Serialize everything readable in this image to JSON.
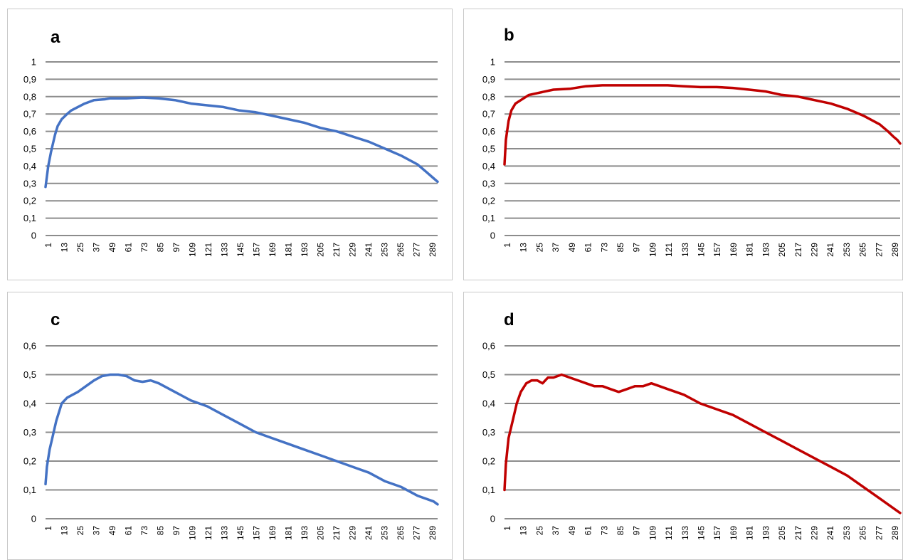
{
  "colors": {
    "blue": "#4472c4",
    "red": "#c00000",
    "grid": "#8c8c8c"
  },
  "chart_data": [
    {
      "panel": "a",
      "type": "line",
      "color": "#4472c4",
      "ylim": [
        0,
        1
      ],
      "yticks": [
        "0",
        "0,1",
        "0,2",
        "0,3",
        "0,4",
        "0,5",
        "0,6",
        "0,7",
        "0,8",
        "0,9",
        "1"
      ],
      "xticks": [
        "1",
        "13",
        "25",
        "37",
        "49",
        "61",
        "73",
        "85",
        "97",
        "109",
        "121",
        "133",
        "145",
        "157",
        "169",
        "181",
        "193",
        "205",
        "217",
        "229",
        "241",
        "253",
        "265",
        "277",
        "289"
      ],
      "grid": true,
      "series": [
        {
          "x": [
            1,
            3,
            5,
            8,
            10,
            13,
            17,
            20,
            25,
            30,
            37,
            45,
            49,
            61,
            73,
            85,
            97,
            109,
            121,
            133,
            145,
            157,
            169,
            181,
            193,
            205,
            217,
            229,
            241,
            253,
            265,
            277,
            283,
            289,
            292
          ],
          "values": [
            0.28,
            0.4,
            0.48,
            0.58,
            0.63,
            0.67,
            0.7,
            0.72,
            0.74,
            0.76,
            0.78,
            0.785,
            0.79,
            0.79,
            0.795,
            0.79,
            0.78,
            0.76,
            0.75,
            0.74,
            0.72,
            0.71,
            0.69,
            0.67,
            0.65,
            0.62,
            0.6,
            0.57,
            0.54,
            0.5,
            0.46,
            0.41,
            0.37,
            0.33,
            0.31
          ]
        }
      ]
    },
    {
      "panel": "b",
      "type": "line",
      "color": "#c00000",
      "ylim": [
        0,
        1
      ],
      "yticks": [
        "0",
        "0,1",
        "0,2",
        "0,3",
        "0,4",
        "0,5",
        "0,6",
        "0,7",
        "0,8",
        "0,9",
        "1"
      ],
      "xticks": [
        "1",
        "13",
        "25",
        "37",
        "49",
        "61",
        "73",
        "85",
        "97",
        "109",
        "121",
        "133",
        "145",
        "157",
        "169",
        "181",
        "193",
        "205",
        "217",
        "229",
        "241",
        "253",
        "265",
        "277",
        "289"
      ],
      "grid": true,
      "series": [
        {
          "x": [
            1,
            2,
            4,
            6,
            9,
            13,
            19,
            25,
            37,
            49,
            61,
            73,
            85,
            97,
            109,
            121,
            133,
            145,
            157,
            169,
            181,
            193,
            205,
            217,
            229,
            241,
            253,
            265,
            277,
            283,
            287,
            290,
            292
          ],
          "values": [
            0.41,
            0.55,
            0.66,
            0.72,
            0.76,
            0.78,
            0.81,
            0.82,
            0.84,
            0.845,
            0.86,
            0.865,
            0.865,
            0.865,
            0.865,
            0.865,
            0.86,
            0.855,
            0.855,
            0.85,
            0.84,
            0.83,
            0.81,
            0.8,
            0.78,
            0.76,
            0.73,
            0.69,
            0.64,
            0.6,
            0.57,
            0.55,
            0.53
          ]
        }
      ]
    },
    {
      "panel": "c",
      "type": "line",
      "color": "#4472c4",
      "ylim": [
        0,
        0.6
      ],
      "yticks": [
        "0",
        "0,1",
        "0,2",
        "0,3",
        "0,4",
        "0,5",
        "0,6"
      ],
      "xticks": [
        "1",
        "13",
        "25",
        "37",
        "49",
        "61",
        "73",
        "85",
        "97",
        "109",
        "121",
        "133",
        "145",
        "157",
        "169",
        "181",
        "193",
        "205",
        "217",
        "229",
        "241",
        "253",
        "265",
        "277",
        "289"
      ],
      "grid": true,
      "series": [
        {
          "x": [
            1,
            2,
            4,
            6,
            9,
            13,
            17,
            21,
            25,
            31,
            37,
            43,
            49,
            55,
            61,
            67,
            73,
            79,
            85,
            97,
            109,
            121,
            133,
            145,
            157,
            169,
            181,
            193,
            205,
            217,
            229,
            241,
            253,
            265,
            277,
            289,
            292
          ],
          "values": [
            0.12,
            0.18,
            0.24,
            0.28,
            0.34,
            0.4,
            0.42,
            0.43,
            0.44,
            0.46,
            0.48,
            0.495,
            0.5,
            0.5,
            0.495,
            0.48,
            0.475,
            0.48,
            0.47,
            0.44,
            0.41,
            0.39,
            0.36,
            0.33,
            0.3,
            0.28,
            0.26,
            0.24,
            0.22,
            0.2,
            0.18,
            0.16,
            0.13,
            0.11,
            0.08,
            0.06,
            0.05
          ]
        }
      ]
    },
    {
      "panel": "d",
      "type": "line",
      "color": "#c00000",
      "ylim": [
        0,
        0.6
      ],
      "yticks": [
        "0",
        "0,1",
        "0,2",
        "0,3",
        "0,4",
        "0,5",
        "0,6"
      ],
      "xticks": [
        "1",
        "13",
        "25",
        "37",
        "49",
        "61",
        "73",
        "85",
        "97",
        "109",
        "121",
        "133",
        "145",
        "157",
        "169",
        "181",
        "193",
        "205",
        "217",
        "229",
        "241",
        "253",
        "265",
        "277",
        "289"
      ],
      "grid": true,
      "series": [
        {
          "x": [
            1,
            2,
            4,
            7,
            10,
            13,
            17,
            21,
            25,
            29,
            33,
            37,
            43,
            49,
            55,
            61,
            67,
            73,
            79,
            85,
            91,
            97,
            103,
            109,
            115,
            121,
            133,
            145,
            157,
            169,
            181,
            193,
            205,
            217,
            229,
            241,
            253,
            265,
            277,
            289,
            292
          ],
          "values": [
            0.1,
            0.19,
            0.28,
            0.34,
            0.4,
            0.44,
            0.47,
            0.48,
            0.48,
            0.47,
            0.49,
            0.49,
            0.5,
            0.49,
            0.48,
            0.47,
            0.46,
            0.46,
            0.45,
            0.44,
            0.45,
            0.46,
            0.46,
            0.47,
            0.46,
            0.45,
            0.43,
            0.4,
            0.38,
            0.36,
            0.33,
            0.3,
            0.27,
            0.24,
            0.21,
            0.18,
            0.15,
            0.11,
            0.07,
            0.03,
            0.02
          ]
        }
      ]
    }
  ]
}
